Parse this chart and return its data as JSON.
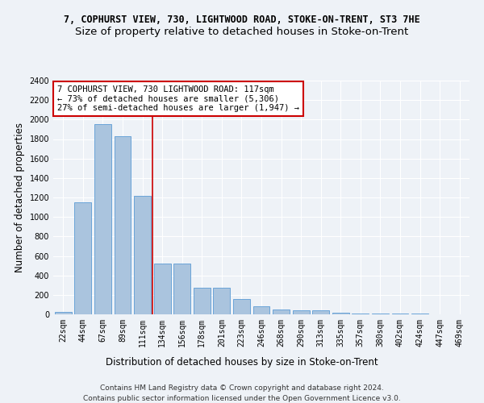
{
  "title1": "7, COPHURST VIEW, 730, LIGHTWOOD ROAD, STOKE-ON-TRENT, ST3 7HE",
  "title2": "Size of property relative to detached houses in Stoke-on-Trent",
  "xlabel": "Distribution of detached houses by size in Stoke-on-Trent",
  "ylabel": "Number of detached properties",
  "categories": [
    "22sqm",
    "44sqm",
    "67sqm",
    "89sqm",
    "111sqm",
    "134sqm",
    "156sqm",
    "178sqm",
    "201sqm",
    "223sqm",
    "246sqm",
    "268sqm",
    "290sqm",
    "313sqm",
    "335sqm",
    "357sqm",
    "380sqm",
    "402sqm",
    "424sqm",
    "447sqm",
    "469sqm"
  ],
  "values": [
    25,
    1150,
    1950,
    1830,
    1220,
    520,
    520,
    275,
    270,
    155,
    80,
    50,
    40,
    38,
    18,
    12,
    10,
    8,
    5,
    3,
    2
  ],
  "bar_color": "#aac4de",
  "bar_edge_color": "#5b9bd5",
  "property_bin_index": 4,
  "annotation_text": "7 COPHURST VIEW, 730 LIGHTWOOD ROAD: 117sqm\n← 73% of detached houses are smaller (5,306)\n27% of semi-detached houses are larger (1,947) →",
  "annotation_box_color": "#ffffff",
  "annotation_box_edge": "#cc0000",
  "vline_color": "#cc0000",
  "footer1": "Contains HM Land Registry data © Crown copyright and database right 2024.",
  "footer2": "Contains public sector information licensed under the Open Government Licence v3.0.",
  "ylim": [
    0,
    2400
  ],
  "yticks": [
    0,
    200,
    400,
    600,
    800,
    1000,
    1200,
    1400,
    1600,
    1800,
    2000,
    2200,
    2400
  ],
  "bg_color": "#eef2f7",
  "grid_color": "#ffffff",
  "title_fontsize": 8.5,
  "subtitle_fontsize": 9.5,
  "axis_label_fontsize": 8.5,
  "tick_fontsize": 7,
  "annotation_fontsize": 7.5,
  "footer_fontsize": 6.5
}
